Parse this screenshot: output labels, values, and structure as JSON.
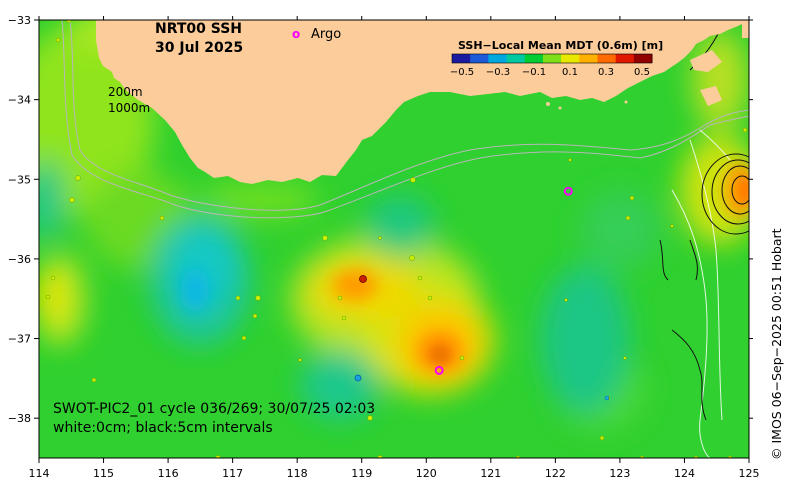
{
  "header": {
    "product": "NRT00 SSH",
    "date": "30 Jul 2025"
  },
  "legend": {
    "argo_marker": "o",
    "argo_label": "Argo",
    "colorbar_title": "SSH−Local Mean MDT (0.6m) [m]",
    "colorbar_ticks": [
      "−0.5",
      "−0.3",
      "−0.1",
      "0.1",
      "0.3",
      "0.5"
    ],
    "colorbar_colors": [
      "#1a1aa0",
      "#1e5ad8",
      "#00a8e0",
      "#00c8a0",
      "#00cc33",
      "#7fe01a",
      "#e8e800",
      "#ffb000",
      "#ff6a00",
      "#e01800",
      "#900000"
    ]
  },
  "isobaths": {
    "shallow": "200m",
    "deep": "1000m"
  },
  "axes": {
    "x_ticks": [
      "114",
      "115",
      "116",
      "117",
      "118",
      "119",
      "120",
      "121",
      "122",
      "123",
      "124",
      "125"
    ],
    "y_ticks": [
      "−33",
      "−34",
      "−35",
      "−36",
      "−37",
      "−38"
    ]
  },
  "footer": {
    "pass": "SWOT-PIC2_01 cycle 036/269; 30/07/25 02:03",
    "contours": "white:0cm; black:5cm intervals"
  },
  "credit": "© IMOS 06−Sep−2025 00:51 Hobart",
  "colors": {
    "land": "#fccc9a",
    "ocean": "#2ed12e",
    "argo": "#ff00ff"
  },
  "argo_floats": [
    {
      "lon": 122.2,
      "lat": -35.15
    },
    {
      "lon": 120.2,
      "lat": -37.4
    }
  ]
}
